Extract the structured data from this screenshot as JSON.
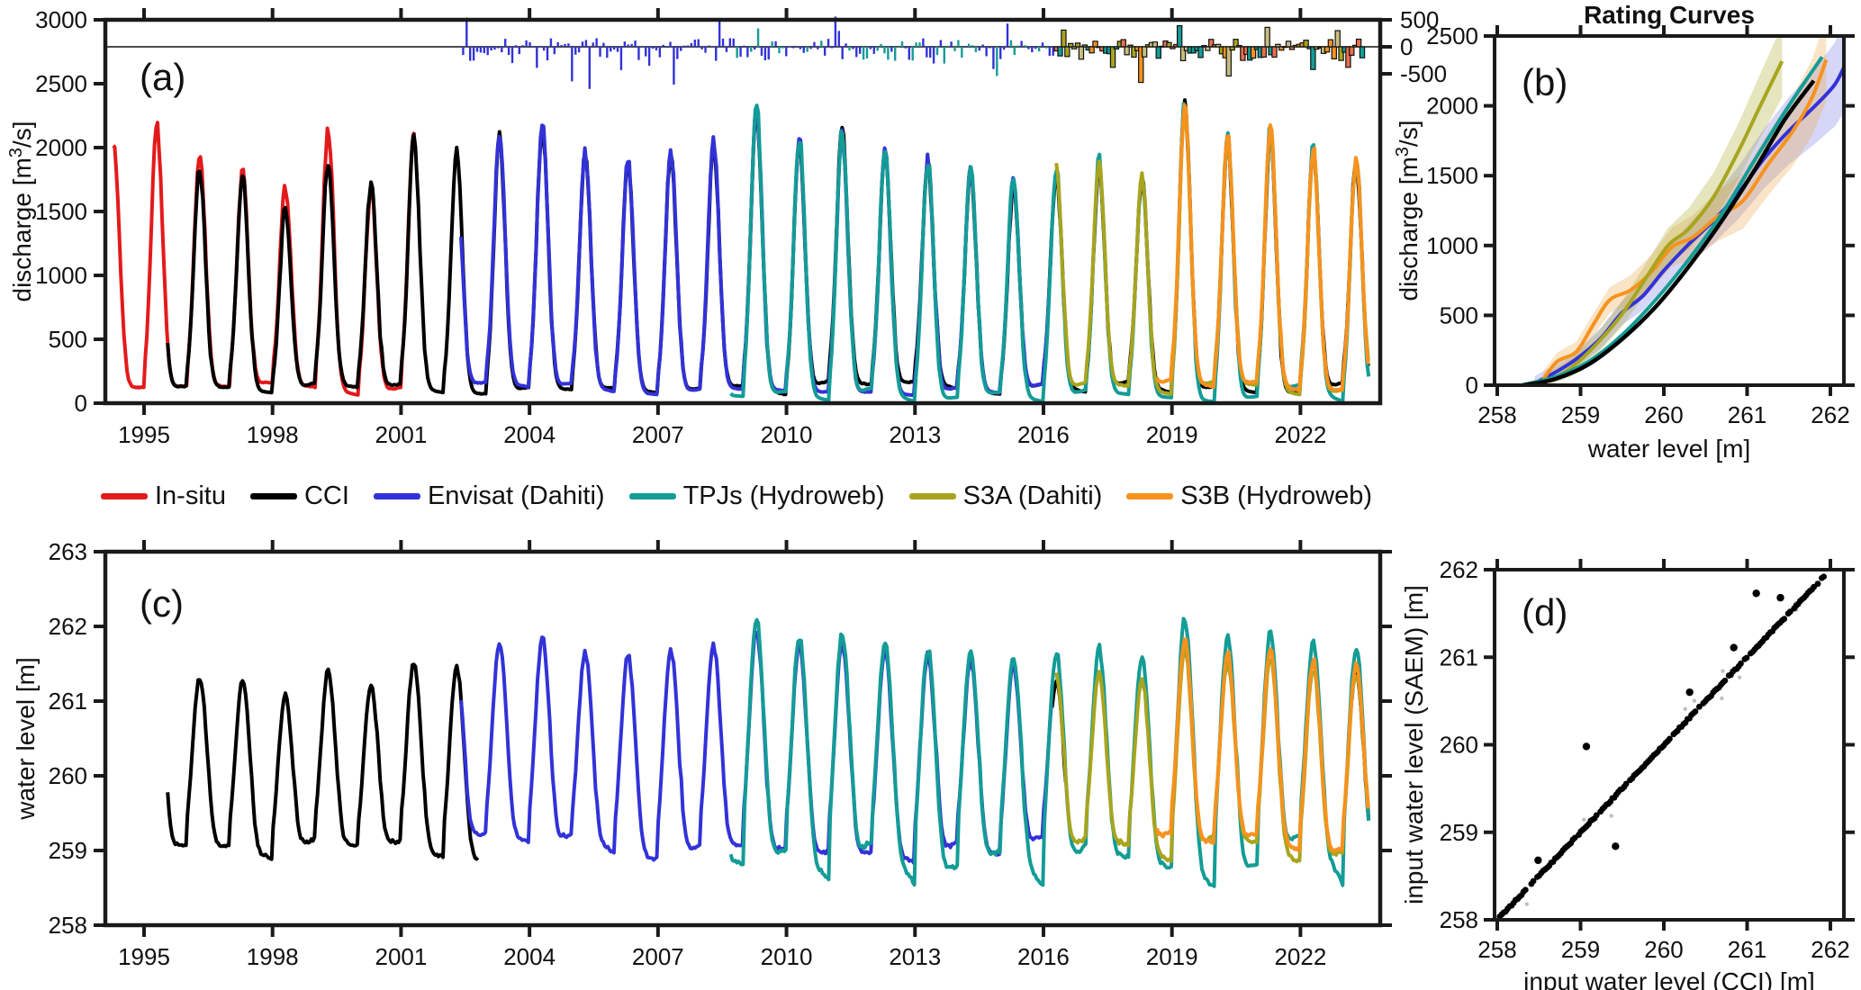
{
  "figure": {
    "panels": {
      "a": "(a)",
      "b": "(b)",
      "c": "(c)",
      "d": "(d)"
    }
  },
  "colors": {
    "red": "#e31a1c",
    "black": "#000000",
    "blue": "#3232d8",
    "teal": "#149c96",
    "olive": "#a8a41e",
    "orange": "#f6921e",
    "salmon": "#e8704d",
    "tan": "#c9bd7f",
    "band_blue": "rgba(90,90,220,0.25)",
    "band_olive": "rgba(170,168,40,0.30)",
    "band_tan": "rgba(235,170,80,0.32)"
  },
  "legend": {
    "items": [
      {
        "label": "In-situ",
        "color_key": "red"
      },
      {
        "label": "CCI",
        "color_key": "black"
      },
      {
        "label": "Envisat (Dahiti)",
        "color_key": "blue"
      },
      {
        "label": "TPJs (Hydroweb)",
        "color_key": "teal"
      },
      {
        "label": "S3A (Dahiti)",
        "color_key": "olive"
      },
      {
        "label": "S3B (Hydroweb)",
        "color_key": "orange"
      }
    ]
  },
  "chart_data": [
    {
      "id": "a",
      "type": "line",
      "panel_label": "(a)",
      "ylabel_parts": [
        "discharge [m",
        "3",
        "/s]"
      ],
      "xlim": [
        1994.1,
        2023.85
      ],
      "ylim": [
        0,
        3000
      ],
      "xticks": [
        1995,
        1998,
        2001,
        2004,
        2007,
        2010,
        2013,
        2016,
        2019,
        2022
      ],
      "yticks": [
        0,
        500,
        1000,
        1500,
        2000,
        2500,
        3000
      ],
      "right_axis": {
        "ticks": [
          500,
          0,
          -500
        ],
        "note": "residual discharge axis"
      },
      "series": [
        {
          "name": "In-situ",
          "color_key": "red",
          "t0": 1994.28,
          "t1": 2001.35,
          "year0": 1994,
          "peaks": [
            2000,
            2170,
            1960,
            1810,
            1690,
            2150,
            1690,
            2100
          ],
          "trough_bias": 0,
          "level_gain": 1.0
        },
        {
          "name": "CCI",
          "color_key": "black",
          "t0": 1995.55,
          "t1": 2023.6,
          "year0": 1995,
          "peaks": [
            2200,
            1830,
            1780,
            1530,
            1900,
            1710,
            2060,
            1960,
            2080,
            2160,
            1950,
            1870,
            1950,
            2000,
            2280,
            2020,
            2130,
            1950,
            1880,
            1800,
            1700,
            1780,
            1850,
            1750,
            2320,
            2050,
            2100,
            1980,
            1900
          ],
          "trough_bias": 0,
          "level_gain": 1.0,
          "spans_c": [
            [
              1995.55,
              2002.8
            ],
            [
              2016.2,
              2016.55
            ],
            [
              2023.2,
              2023.6
            ]
          ]
        },
        {
          "name": "Envisat (Dahiti)",
          "color_key": "blue",
          "t0": 2002.4,
          "t1": 2016.2,
          "year0": 2002,
          "peaks": [
            1700,
            2120,
            2160,
            1950,
            1900,
            1960,
            2050,
            2300,
            2060,
            2100,
            1950,
            1900,
            1820,
            1750,
            1800
          ],
          "trough_bias": 0,
          "level_gain": 1.07
        },
        {
          "name": "TPJs (Hydroweb)",
          "color_key": "teal",
          "t0": 2008.7,
          "t1": 2023.6,
          "year0": 2008,
          "peaks": [
            1900,
            2330,
            2080,
            2150,
            1980,
            1900,
            1850,
            1780,
            1850,
            1900,
            1800,
            2350,
            2100,
            2150,
            2000,
            1950
          ],
          "trough_bias": -35,
          "level_gain": 1.1
        },
        {
          "name": "S3A (Dahiti)",
          "color_key": "olive",
          "t0": 2016.3,
          "t1": 2023.6,
          "year0": 2016,
          "peaks": [
            1850,
            1880,
            1780,
            2280,
            2060,
            2120,
            1960,
            1900
          ],
          "trough_bias": 10,
          "level_gain": 1.0
        },
        {
          "name": "S3B (Hydroweb)",
          "color_key": "orange",
          "t0": 2018.65,
          "t1": 2023.6,
          "year0": 2018,
          "peaks": [
            1800,
            2300,
            2080,
            2140,
            1990,
            1920
          ],
          "trough_bias": 15,
          "level_gain": 1.03
        }
      ],
      "residuals": {
        "t0": 2002.45,
        "t1": 2023.45,
        "era2_start": 2016.3,
        "teal_mix_start": 2008.8,
        "value_range": [
          -450,
          300
        ],
        "spikes": [
          [
            2002.55,
            540
          ],
          [
            2003.6,
            -300
          ],
          [
            2004.15,
            -390
          ],
          [
            2005.0,
            -640
          ],
          [
            2005.4,
            -780
          ],
          [
            2006.8,
            -350
          ],
          [
            2007.35,
            -700
          ],
          [
            2008.4,
            520
          ],
          [
            2009.35,
            340
          ],
          [
            2011.15,
            560
          ],
          [
            2012.5,
            -260
          ],
          [
            2013.4,
            -310
          ],
          [
            2014.95,
            -540
          ],
          [
            2015.15,
            430
          ],
          [
            2016.5,
            310
          ],
          [
            2017.6,
            -380
          ],
          [
            2018.25,
            -660
          ],
          [
            2019.15,
            390
          ],
          [
            2020.35,
            -540
          ],
          [
            2021.25,
            360
          ],
          [
            2022.3,
            -420
          ],
          [
            2023.1,
            -380
          ]
        ],
        "era2_fill_keys": [
          "olive",
          "tan",
          "salmon",
          "orange",
          "teal"
        ]
      }
    },
    {
      "id": "b",
      "type": "line",
      "panel_label": "(b)",
      "title": "Rating Curves",
      "xlabel": "water level [m]",
      "ylabel_parts": [
        "discharge [m",
        "3",
        "/s]"
      ],
      "xlim": [
        257.97,
        262.16
      ],
      "ylim": [
        0,
        2500
      ],
      "xticks": [
        258,
        259,
        260,
        261,
        262
      ],
      "yticks": [
        0,
        500,
        1000,
        1500,
        2000,
        2500
      ],
      "curves": [
        {
          "name": "Envisat (Dahiti)",
          "color_key": "blue",
          "points": [
            [
              258.45,
              15
            ],
            [
              258.75,
              110
            ],
            [
              259.0,
              210
            ],
            [
              259.25,
              340
            ],
            [
              259.5,
              520
            ],
            [
              259.75,
              640
            ],
            [
              260.0,
              820
            ],
            [
              260.3,
              1010
            ],
            [
              260.6,
              1180
            ],
            [
              260.9,
              1380
            ],
            [
              261.2,
              1620
            ],
            [
              261.5,
              1820
            ],
            [
              261.8,
              1990
            ],
            [
              262.05,
              2150
            ],
            [
              262.18,
              2300
            ]
          ],
          "band": {
            "color_key": "band_blue",
            "w0": 50,
            "w1": 330
          }
        },
        {
          "name": "S3B (Hydroweb)",
          "color_key": "orange",
          "points": [
            [
              258.55,
              40
            ],
            [
              258.72,
              170
            ],
            [
              258.95,
              240
            ],
            [
              259.15,
              430
            ],
            [
              259.35,
              610
            ],
            [
              259.6,
              680
            ],
            [
              259.85,
              810
            ],
            [
              260.1,
              990
            ],
            [
              260.35,
              1060
            ],
            [
              260.65,
              1210
            ],
            [
              260.95,
              1320
            ],
            [
              261.25,
              1580
            ],
            [
              261.55,
              1820
            ],
            [
              261.78,
              2060
            ],
            [
              261.95,
              2330
            ]
          ],
          "band": {
            "color_key": "band_tan",
            "w0": 60,
            "w1": 300
          }
        },
        {
          "name": "S3A (Dahiti)",
          "color_key": "olive",
          "points": [
            [
              258.62,
              30
            ],
            [
              258.9,
              130
            ],
            [
              259.2,
              300
            ],
            [
              259.5,
              510
            ],
            [
              259.8,
              780
            ],
            [
              260.05,
              1000
            ],
            [
              260.3,
              1120
            ],
            [
              260.6,
              1350
            ],
            [
              260.9,
              1680
            ],
            [
              261.15,
              1990
            ],
            [
              261.42,
              2320
            ]
          ],
          "band": {
            "color_key": "band_olive",
            "w0": 60,
            "w1": 260
          }
        },
        {
          "name": "TPJs (Hydroweb)",
          "color_key": "teal",
          "points": [
            [
              258.28,
              0
            ],
            [
              258.7,
              60
            ],
            [
              259.1,
              170
            ],
            [
              259.5,
              360
            ],
            [
              259.9,
              610
            ],
            [
              260.3,
              900
            ],
            [
              260.7,
              1230
            ],
            [
              261.1,
              1620
            ],
            [
              261.5,
              2000
            ],
            [
              261.9,
              2350
            ]
          ],
          "band": null
        },
        {
          "name": "CCI",
          "color_key": "black",
          "points": [
            [
              258.32,
              0
            ],
            [
              258.7,
              45
            ],
            [
              259.1,
              150
            ],
            [
              259.5,
              330
            ],
            [
              259.9,
              560
            ],
            [
              260.3,
              850
            ],
            [
              260.7,
              1180
            ],
            [
              261.1,
              1550
            ],
            [
              261.45,
              1900
            ],
            [
              261.8,
              2180
            ]
          ],
          "band": null
        }
      ]
    },
    {
      "id": "c",
      "type": "line",
      "panel_label": "(c)",
      "ylabel": "water level [m]",
      "xlim": [
        1994.1,
        2023.85
      ],
      "ylim": [
        258,
        263
      ],
      "xticks": [
        1995,
        1998,
        2001,
        2004,
        2007,
        2010,
        2013,
        2016,
        2019,
        2022
      ],
      "yticks": [
        258,
        259,
        260,
        261,
        262,
        263
      ],
      "series_from": "a",
      "exclude_series": [
        "In-situ"
      ],
      "rating": {
        "h0": 258.25,
        "scale": 3.45,
        "qref": 2300
      }
    },
    {
      "id": "d",
      "type": "scatter",
      "panel_label": "(d)",
      "xlabel": "input water level (CCI) [m]",
      "ylabel": "input water level (SAEM) [m]",
      "xlim": [
        257.97,
        262.16
      ],
      "ylim": [
        258,
        262
      ],
      "xticks": [
        258,
        259,
        260,
        261,
        262
      ],
      "yticks": [
        258,
        259,
        260,
        261,
        262
      ],
      "diagonal": {
        "min": 258.03,
        "max": 261.92,
        "count": 165
      },
      "outliers": [
        [
          258.49,
          258.68
        ],
        [
          259.07,
          259.98
        ],
        [
          259.42,
          258.84
        ],
        [
          260.31,
          260.6
        ],
        [
          260.84,
          261.11
        ],
        [
          261.11,
          261.73
        ],
        [
          261.4,
          261.68
        ]
      ]
    }
  ]
}
